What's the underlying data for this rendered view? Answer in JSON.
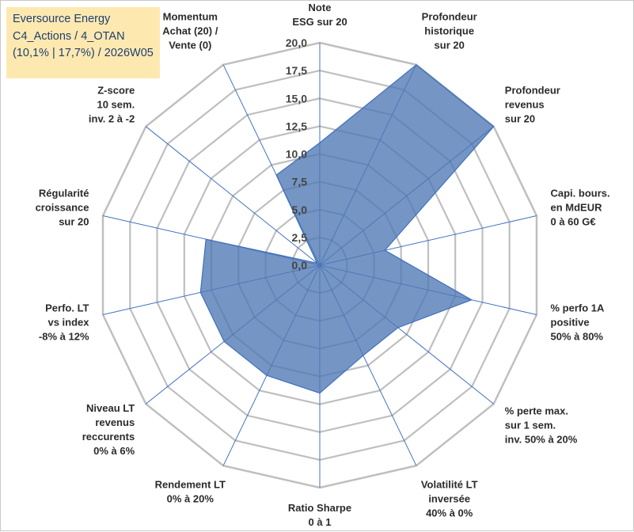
{
  "title": {
    "company": "Eversource Energy",
    "portfolio": "C4_Actions / 4_OTAN",
    "stats": "(10,1% | 17,7%) / 2026W05"
  },
  "colors": {
    "grid": "#bfbfbf",
    "spoke": "#4472c4",
    "fill": "#4e79b4",
    "stroke": "#3f6fbf",
    "title_bg": "#fde9b0",
    "title_text": "#1f3e6e"
  },
  "chart_data": {
    "type": "radar",
    "range": [
      0,
      20
    ],
    "tick_labels": [
      "0,0",
      "2,5",
      "5,0",
      "7,5",
      "10,0",
      "12,5",
      "15,0",
      "17,5",
      "20,0"
    ],
    "axes": [
      {
        "lines": [
          "Note",
          "ESG sur 20"
        ]
      },
      {
        "lines": [
          "Profondeur",
          "historique",
          "sur 20"
        ]
      },
      {
        "lines": [
          "Profondeur",
          "revenus",
          "sur 20"
        ]
      },
      {
        "lines": [
          "Capi. bours.",
          "en MdEUR",
          "0 à 60 G€"
        ]
      },
      {
        "lines": [
          "% perfo 1A",
          "positive",
          "50% à 80%"
        ]
      },
      {
        "lines": [
          "% perte max.",
          "sur 1 sem.",
          "inv. 50% à 20%"
        ]
      },
      {
        "lines": [
          "Volatilité LT",
          "inversée",
          "40% à 0%"
        ]
      },
      {
        "lines": [
          "Ratio Sharpe",
          "0 à 1"
        ]
      },
      {
        "lines": [
          "Rendement LT",
          "0% à 20%"
        ]
      },
      {
        "lines": [
          "Niveau LT",
          "revenus",
          "reccurents",
          "0% à 6%"
        ]
      },
      {
        "lines": [
          "Perfo. LT",
          "vs index",
          "-8% à 12%"
        ]
      },
      {
        "lines": [
          "Régularité",
          "croissance",
          "sur 20"
        ]
      },
      {
        "lines": [
          "Z-score",
          "10 sem.",
          "inv. 2 à -2"
        ]
      },
      {
        "lines": [
          "Momentum",
          "Achat (20) /",
          "Vente (0)"
        ]
      }
    ],
    "series": [
      {
        "name": "Eversource Energy",
        "values": [
          11.0,
          20.0,
          20.0,
          6.0,
          14.0,
          9.0,
          9.0,
          11.5,
          11.0,
          11.0,
          11.0,
          10.5,
          0.3,
          9.0
        ]
      }
    ]
  }
}
